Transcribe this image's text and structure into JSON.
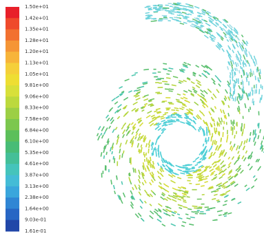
{
  "colorbar": {
    "labels": [
      "1.50e+01",
      "1.42e+01",
      "1.35e+01",
      "1.28e+01",
      "1.20e+01",
      "1.13e+01",
      "1.05e+01",
      "9.81e+00",
      "9.06e+00",
      "8.33e+00",
      "7.58e+00",
      "6.84e+00",
      "6.10e+00",
      "5.35e+00",
      "4.61e+00",
      "3.87e+00",
      "3.13e+00",
      "2.38e+00",
      "1.64e+00",
      "9.03e-01",
      "1.61e-01"
    ],
    "colors": [
      "#e8202a",
      "#ef4a2c",
      "#f27130",
      "#f59536",
      "#f7b43a",
      "#f5cf3a",
      "#eede33",
      "#d8e03a",
      "#bcd93d",
      "#9ccf45",
      "#7cc74e",
      "#5cbf5a",
      "#48bc76",
      "#44bf98",
      "#45c4bb",
      "#44bcd6",
      "#3aa6dc",
      "#3086d4",
      "#2866c4",
      "#2147a8"
    ]
  }
}
